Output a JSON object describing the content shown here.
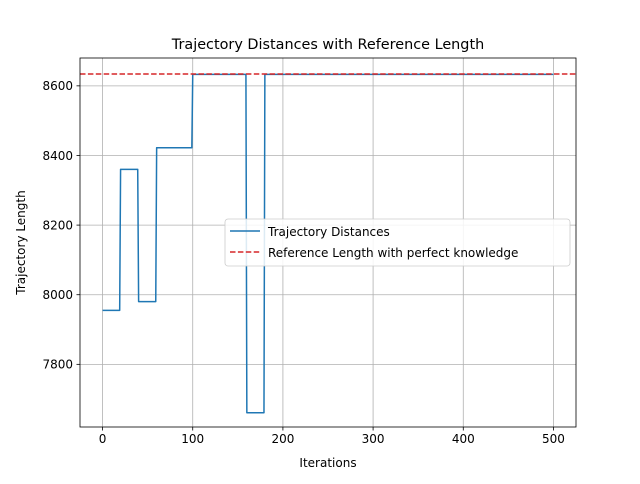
{
  "chart_data": {
    "type": "line",
    "title": "Trajectory Distances with Reference Length",
    "xlabel": "Iterations",
    "ylabel": "Trajectory Length",
    "xlim": [
      -25,
      525
    ],
    "ylim": [
      7620,
      8680
    ],
    "xticks": [
      0,
      100,
      200,
      300,
      400,
      500
    ],
    "yticks": [
      7800,
      8000,
      8200,
      8400,
      8600
    ],
    "grid": true,
    "legend_position": "center-right",
    "series": [
      {
        "name": "Trajectory Distances",
        "color": "#1f77b4",
        "style": "solid",
        "points": [
          [
            0,
            7955
          ],
          [
            19,
            7955
          ],
          [
            20,
            8360
          ],
          [
            39,
            8360
          ],
          [
            40,
            7980
          ],
          [
            59,
            7980
          ],
          [
            60,
            8422
          ],
          [
            99,
            8422
          ],
          [
            100,
            8633
          ],
          [
            159,
            8633
          ],
          [
            160,
            7661
          ],
          [
            179,
            7661
          ],
          [
            180,
            8633
          ],
          [
            500,
            8633
          ]
        ]
      },
      {
        "name": "Reference Length with perfect knowledge",
        "color": "#d62728",
        "style": "dashed",
        "y": 8634
      }
    ]
  }
}
